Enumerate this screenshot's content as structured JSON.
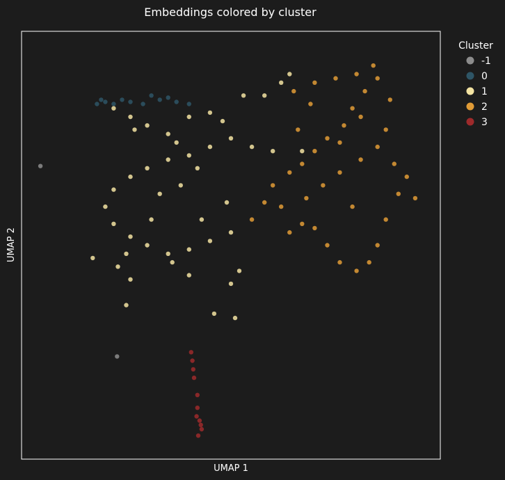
{
  "chart_data": {
    "type": "scatter",
    "title": "Embeddings colored by cluster",
    "xlabel": "UMAP 1",
    "ylabel": "UMAP 2",
    "xlim": [
      0,
      10
    ],
    "ylim": [
      0,
      10
    ],
    "grid": false,
    "ticks_shown": false,
    "legend": {
      "title": "Cluster",
      "placement": "outside-top-right",
      "entries": [
        {
          "label": "-1",
          "color": "#8c8c8c"
        },
        {
          "label": "0",
          "color": "#2e5566"
        },
        {
          "label": "1",
          "color": "#f3e3a2"
        },
        {
          "label": "2",
          "color": "#e09b36"
        },
        {
          "label": "3",
          "color": "#9e2a2b"
        }
      ]
    },
    "series": [
      {
        "name": "-1",
        "color": "#8c8c8c",
        "points": [
          [
            0.45,
            6.85
          ],
          [
            2.28,
            2.4
          ]
        ]
      },
      {
        "name": "0",
        "color": "#2e5566",
        "points": [
          [
            1.8,
            8.3
          ],
          [
            2.0,
            8.35
          ],
          [
            2.2,
            8.3
          ],
          [
            2.4,
            8.4
          ],
          [
            2.6,
            8.35
          ],
          [
            2.9,
            8.3
          ],
          [
            3.3,
            8.4
          ],
          [
            3.5,
            8.45
          ],
          [
            3.7,
            8.35
          ],
          [
            4.0,
            8.3
          ],
          [
            1.9,
            8.4
          ],
          [
            3.1,
            8.5
          ]
        ]
      },
      {
        "name": "1",
        "color": "#f3e3a2",
        "points": [
          [
            2.2,
            8.2
          ],
          [
            2.6,
            8.0
          ],
          [
            3.0,
            7.8
          ],
          [
            3.5,
            7.6
          ],
          [
            4.0,
            8.0
          ],
          [
            4.5,
            8.1
          ],
          [
            4.8,
            7.9
          ],
          [
            5.0,
            7.5
          ],
          [
            4.5,
            7.3
          ],
          [
            4.0,
            7.1
          ],
          [
            3.5,
            7.0
          ],
          [
            3.0,
            6.8
          ],
          [
            2.6,
            6.6
          ],
          [
            2.2,
            6.3
          ],
          [
            2.0,
            5.9
          ],
          [
            2.2,
            5.5
          ],
          [
            2.6,
            5.2
          ],
          [
            3.0,
            5.0
          ],
          [
            3.5,
            4.8
          ],
          [
            4.0,
            4.9
          ],
          [
            4.5,
            5.1
          ],
          [
            5.0,
            5.3
          ],
          [
            3.3,
            6.2
          ],
          [
            3.8,
            6.4
          ],
          [
            4.2,
            6.8
          ],
          [
            2.5,
            4.8
          ],
          [
            2.3,
            4.5
          ],
          [
            1.7,
            4.7
          ],
          [
            2.6,
            4.2
          ],
          [
            2.5,
            3.6
          ],
          [
            3.6,
            4.6
          ],
          [
            4.0,
            4.3
          ],
          [
            5.0,
            4.1
          ],
          [
            4.6,
            3.4
          ],
          [
            5.1,
            3.3
          ],
          [
            5.2,
            4.4
          ],
          [
            4.9,
            6.0
          ],
          [
            5.5,
            7.3
          ],
          [
            6.0,
            7.2
          ],
          [
            6.7,
            7.2
          ],
          [
            5.8,
            8.5
          ],
          [
            6.2,
            8.8
          ],
          [
            6.4,
            9.0
          ],
          [
            5.3,
            8.5
          ],
          [
            2.7,
            7.7
          ],
          [
            3.7,
            7.4
          ],
          [
            4.3,
            5.6
          ],
          [
            3.1,
            5.6
          ]
        ]
      },
      {
        "name": "2",
        "color": "#e09b36",
        "points": [
          [
            6.5,
            8.6
          ],
          [
            7.0,
            8.8
          ],
          [
            7.5,
            8.9
          ],
          [
            8.0,
            9.0
          ],
          [
            8.4,
            9.2
          ],
          [
            8.5,
            8.9
          ],
          [
            8.2,
            8.6
          ],
          [
            7.9,
            8.2
          ],
          [
            7.7,
            7.8
          ],
          [
            7.3,
            7.5
          ],
          [
            7.0,
            7.2
          ],
          [
            6.7,
            6.9
          ],
          [
            6.4,
            6.7
          ],
          [
            6.0,
            6.4
          ],
          [
            5.8,
            6.0
          ],
          [
            5.5,
            5.6
          ],
          [
            6.2,
            5.9
          ],
          [
            6.8,
            6.1
          ],
          [
            7.2,
            6.4
          ],
          [
            7.6,
            6.7
          ],
          [
            8.1,
            7.0
          ],
          [
            8.5,
            7.3
          ],
          [
            8.9,
            6.9
          ],
          [
            9.2,
            6.6
          ],
          [
            9.0,
            6.2
          ],
          [
            8.7,
            5.6
          ],
          [
            8.5,
            5.0
          ],
          [
            8.3,
            4.6
          ],
          [
            8.0,
            4.4
          ],
          [
            7.6,
            4.6
          ],
          [
            7.3,
            5.0
          ],
          [
            7.0,
            5.4
          ],
          [
            6.7,
            5.5
          ],
          [
            6.4,
            5.3
          ],
          [
            7.6,
            7.4
          ],
          [
            8.1,
            8.0
          ],
          [
            8.8,
            8.4
          ],
          [
            8.7,
            7.7
          ],
          [
            6.9,
            8.3
          ],
          [
            6.6,
            7.7
          ],
          [
            9.4,
            6.1
          ],
          [
            7.9,
            5.9
          ]
        ]
      },
      {
        "name": "3",
        "color": "#9e2a2b",
        "points": [
          [
            4.05,
            2.5
          ],
          [
            4.08,
            2.3
          ],
          [
            4.1,
            2.1
          ],
          [
            4.12,
            1.9
          ],
          [
            4.2,
            1.5
          ],
          [
            4.2,
            1.2
          ],
          [
            4.25,
            0.9
          ],
          [
            4.3,
            0.7
          ],
          [
            4.22,
            0.55
          ],
          [
            4.28,
            0.8
          ],
          [
            4.18,
            1.0
          ]
        ]
      }
    ]
  }
}
